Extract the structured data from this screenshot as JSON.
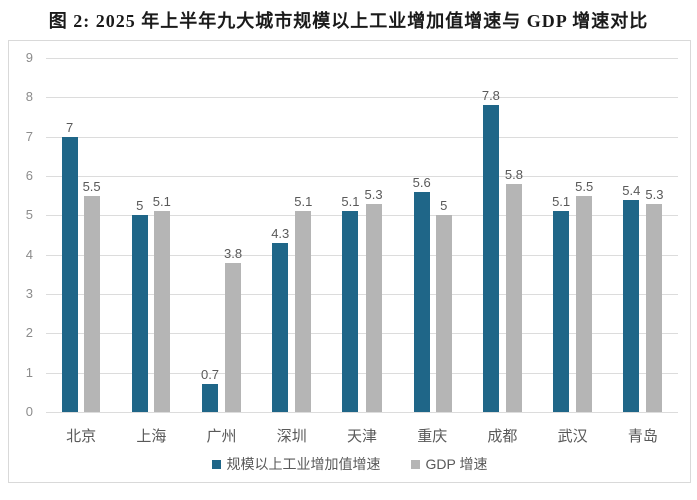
{
  "title": "图 2: 2025 年上半年九大城市规模以上工业增加值增速与 GDP 增速对比",
  "colors": {
    "bar_primary": "#1F6688",
    "bar_secondary": "#B5B5B5",
    "grid": "#DCDCDC",
    "axis_text": "#8C8C8C",
    "value_label_text": "#595959",
    "frame_border": "#D9D9D9"
  },
  "chart_data": {
    "type": "bar",
    "title": "图 2: 2025 年上半年九大城市规模以上工业增加值增速与 GDP 增速对比",
    "categories": [
      "北京",
      "上海",
      "广州",
      "深圳",
      "天津",
      "重庆",
      "成都",
      "武汉",
      "青岛"
    ],
    "series": [
      {
        "name": "规模以上工业增加值增速",
        "color": "#1F6688",
        "values": [
          7,
          5,
          0.7,
          4.3,
          5.1,
          5.6,
          7.8,
          5.1,
          5.4
        ]
      },
      {
        "name": "GDP 增速",
        "color": "#B5B5B5",
        "values": [
          5.5,
          5.1,
          3.8,
          5.1,
          5.3,
          5,
          5.8,
          5.5,
          5.3
        ]
      }
    ],
    "xlabel": "",
    "ylabel": "",
    "ylim": [
      0,
      9
    ],
    "yticks": [
      0,
      1,
      2,
      3,
      4,
      5,
      6,
      7,
      8,
      9
    ],
    "grid": true,
    "legend_position": "bottom",
    "value_labels_shown": true
  }
}
